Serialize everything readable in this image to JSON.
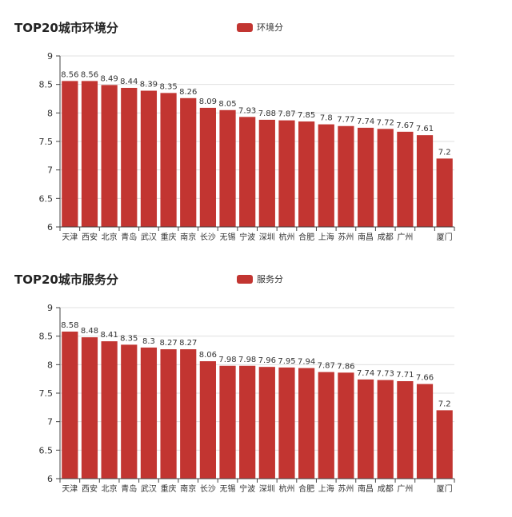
{
  "chart_data": [
    {
      "type": "bar",
      "title": "TOP20城市环境分",
      "legend_position": "top",
      "categories": [
        "天津",
        "西安",
        "北京",
        "青岛",
        "武汉",
        "重庆",
        "南京",
        "长沙",
        "无锡",
        "宁波",
        "深圳",
        "杭州",
        "合肥",
        "上海",
        "苏州",
        "南昌",
        "成都",
        "广州",
        "",
        "厦门"
      ],
      "series": [
        {
          "name": "环境分",
          "values": [
            8.56,
            8.56,
            8.49,
            8.44,
            8.39,
            8.35,
            8.26,
            8.09,
            8.05,
            7.93,
            7.88,
            7.87,
            7.85,
            7.8,
            7.77,
            7.74,
            7.72,
            7.67,
            7.61,
            7.2
          ]
        }
      ],
      "value_labels": [
        "8.56",
        "8.56",
        "8.49",
        "8.44",
        "8.39",
        "8.35",
        "8.26",
        "8.09",
        "8.05",
        "7.93",
        "7.88",
        "7.87",
        "7.85",
        "7.8",
        "7.77",
        "7.74",
        "7.72",
        "7.67",
        "7.61",
        "7.2"
      ],
      "ylim": [
        6,
        9
      ],
      "yticks": [
        "6",
        "6.5",
        "7",
        "7.5",
        "8",
        "8.5",
        "9"
      ],
      "grid": true,
      "color": "#c23531"
    },
    {
      "type": "bar",
      "title": "TOP20城市服务分",
      "legend_position": "top",
      "categories": [
        "天津",
        "西安",
        "北京",
        "青岛",
        "武汉",
        "重庆",
        "南京",
        "长沙",
        "无锡",
        "宁波",
        "深圳",
        "杭州",
        "合肥",
        "上海",
        "苏州",
        "南昌",
        "成都",
        "广州",
        "",
        "厦门"
      ],
      "series": [
        {
          "name": "服务分",
          "values": [
            8.58,
            8.48,
            8.41,
            8.35,
            8.3,
            8.27,
            8.27,
            8.06,
            7.98,
            7.98,
            7.96,
            7.95,
            7.94,
            7.87,
            7.86,
            7.74,
            7.73,
            7.71,
            7.66,
            7.2
          ]
        }
      ],
      "value_labels": [
        "8.58",
        "8.48",
        "8.41",
        "8.35",
        "8.3",
        "8.27",
        "8.27",
        "8.06",
        "7.98",
        "7.98",
        "7.96",
        "7.95",
        "7.94",
        "7.87",
        "7.86",
        "7.74",
        "7.73",
        "7.71",
        "7.66",
        "7.2"
      ],
      "ylim": [
        6,
        9
      ],
      "yticks": [
        "6",
        "6.5",
        "7",
        "7.5",
        "8",
        "8.5",
        "9"
      ],
      "grid": true,
      "color": "#c23531"
    }
  ]
}
